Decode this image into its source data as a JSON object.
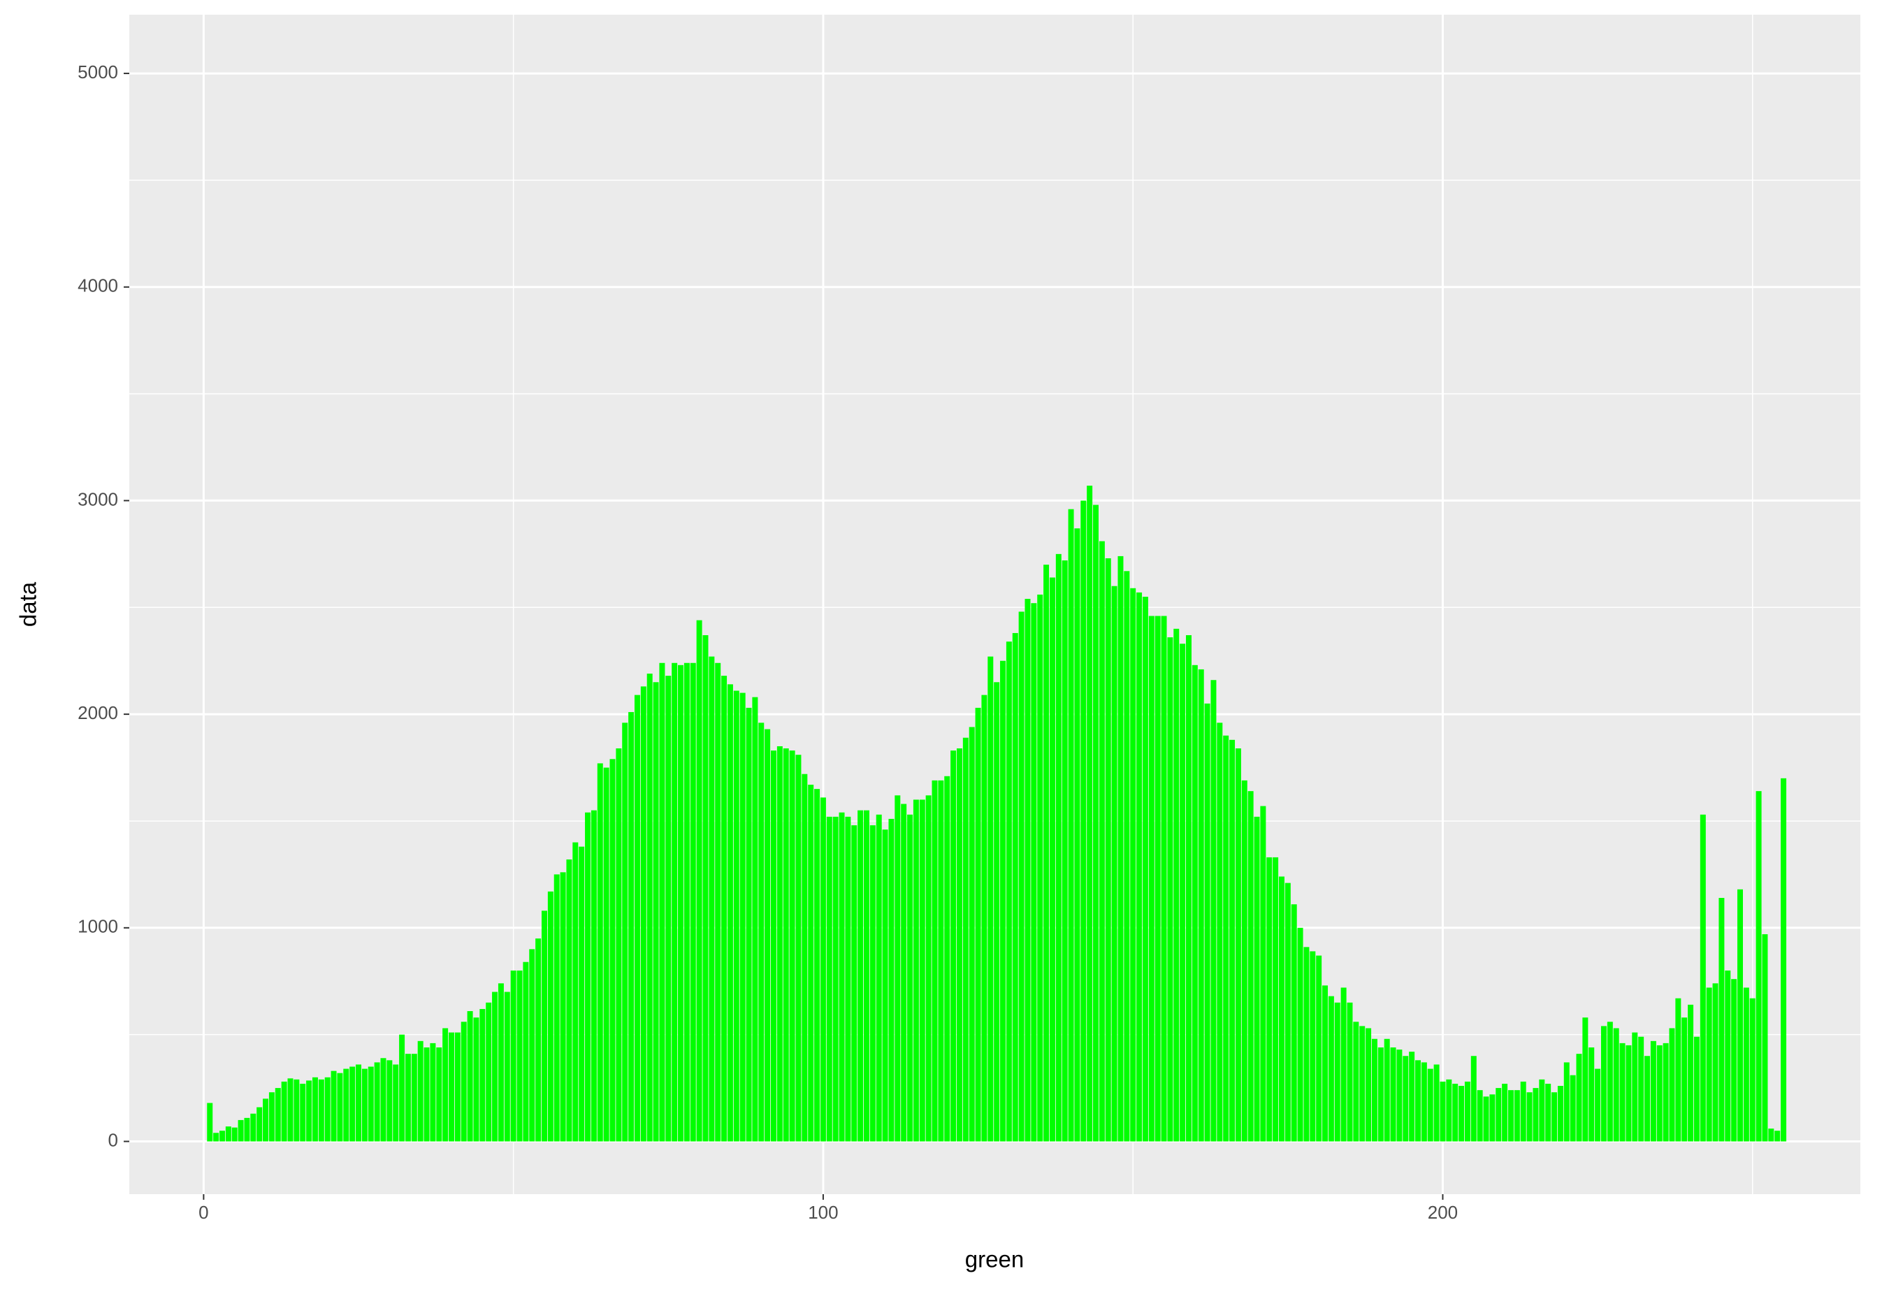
{
  "chart_data": {
    "type": "bar",
    "x_label": "green",
    "y_label": "data",
    "color": "#00ff00",
    "grid": true,
    "xlim": [
      -12,
      267.4
    ],
    "ylim": [
      -247,
      5275
    ],
    "xticks": [
      0,
      100,
      200
    ],
    "x_minor_ticks": [
      50,
      150,
      250
    ],
    "yticks": [
      0,
      1000,
      2000,
      3000,
      4000,
      5000
    ],
    "y_minor_ticks": [
      500,
      1500,
      2500,
      3500,
      4500
    ],
    "x": [
      1,
      2,
      3,
      4,
      5,
      6,
      7,
      8,
      9,
      10,
      11,
      12,
      13,
      14,
      15,
      16,
      17,
      18,
      19,
      20,
      21,
      22,
      23,
      24,
      25,
      26,
      27,
      28,
      29,
      30,
      31,
      32,
      33,
      34,
      35,
      36,
      37,
      38,
      39,
      40,
      41,
      42,
      43,
      44,
      45,
      46,
      47,
      48,
      49,
      50,
      51,
      52,
      53,
      54,
      55,
      56,
      57,
      58,
      59,
      60,
      61,
      62,
      63,
      64,
      65,
      66,
      67,
      68,
      69,
      70,
      71,
      72,
      73,
      74,
      75,
      76,
      77,
      78,
      79,
      80,
      81,
      82,
      83,
      84,
      85,
      86,
      87,
      88,
      89,
      90,
      91,
      92,
      93,
      94,
      95,
      96,
      97,
      98,
      99,
      100,
      101,
      102,
      103,
      104,
      105,
      106,
      107,
      108,
      109,
      110,
      111,
      112,
      113,
      114,
      115,
      116,
      117,
      118,
      119,
      120,
      121,
      122,
      123,
      124,
      125,
      126,
      127,
      128,
      129,
      130,
      131,
      132,
      133,
      134,
      135,
      136,
      137,
      138,
      139,
      140,
      141,
      142,
      143,
      144,
      145,
      146,
      147,
      148,
      149,
      150,
      151,
      152,
      153,
      154,
      155,
      156,
      157,
      158,
      159,
      160,
      161,
      162,
      163,
      164,
      165,
      166,
      167,
      168,
      169,
      170,
      171,
      172,
      173,
      174,
      175,
      176,
      177,
      178,
      179,
      180,
      181,
      182,
      183,
      184,
      185,
      186,
      187,
      188,
      189,
      190,
      191,
      192,
      193,
      194,
      195,
      196,
      197,
      198,
      199,
      200,
      201,
      202,
      203,
      204,
      205,
      206,
      207,
      208,
      209,
      210,
      211,
      212,
      213,
      214,
      215,
      216,
      217,
      218,
      219,
      220,
      221,
      222,
      223,
      224,
      225,
      226,
      227,
      228,
      229,
      230,
      231,
      232,
      233,
      234,
      235,
      236,
      237,
      238,
      239,
      240,
      241,
      242,
      243,
      244,
      245,
      246,
      247,
      248,
      249,
      250,
      251,
      252,
      253,
      254,
      255
    ],
    "values": [
      180,
      40,
      50,
      70,
      65,
      100,
      110,
      130,
      160,
      200,
      230,
      250,
      280,
      295,
      290,
      270,
      285,
      300,
      290,
      300,
      330,
      320,
      340,
      350,
      360,
      340,
      350,
      370,
      390,
      380,
      360,
      500,
      410,
      410,
      470,
      440,
      460,
      440,
      530,
      510,
      510,
      560,
      610,
      580,
      620,
      650,
      700,
      740,
      700,
      800,
      800,
      840,
      900,
      950,
      1080,
      1170,
      1250,
      1260,
      1320,
      1400,
      1380,
      1540,
      1550,
      1770,
      1750,
      1790,
      1840,
      1960,
      2010,
      2090,
      2130,
      2190,
      2150,
      2240,
      2180,
      2240,
      2230,
      2240,
      2240,
      2440,
      2370,
      2270,
      2240,
      2180,
      2140,
      2110,
      2100,
      2030,
      2080,
      1960,
      1930,
      1830,
      1850,
      1840,
      1830,
      1810,
      1720,
      1670,
      1650,
      1610,
      1520,
      1520,
      1540,
      1520,
      1480,
      1550,
      1550,
      1480,
      1530,
      1460,
      1510,
      1620,
      1580,
      1530,
      1600,
      1600,
      1620,
      1690,
      1690,
      1710,
      1830,
      1840,
      1890,
      1940,
      2030,
      2090,
      2270,
      2150,
      2250,
      2340,
      2380,
      2480,
      2540,
      2520,
      2560,
      2700,
      2640,
      2750,
      2720,
      2960,
      2870,
      3000,
      3070,
      2980,
      2810,
      2730,
      2600,
      2740,
      2670,
      2590,
      2570,
      2550,
      2460,
      2460,
      2460,
      2360,
      2400,
      2330,
      2370,
      2230,
      2210,
      2050,
      2160,
      1960,
      1900,
      1880,
      1840,
      1690,
      1640,
      1520,
      1570,
      1330,
      1330,
      1240,
      1210,
      1110,
      1000,
      910,
      890,
      870,
      730,
      680,
      650,
      720,
      650,
      560,
      540,
      530,
      480,
      440,
      480,
      440,
      430,
      400,
      420,
      380,
      370,
      340,
      360,
      280,
      290,
      270,
      260,
      280,
      400,
      240,
      210,
      220,
      250,
      270,
      240,
      240,
      280,
      230,
      250,
      290,
      270,
      230,
      260,
      370,
      310,
      410,
      580,
      440,
      340,
      540,
      560,
      530,
      460,
      450,
      510,
      490,
      400,
      470,
      450,
      460,
      530,
      670,
      580,
      640,
      490,
      1530,
      720,
      740,
      1140,
      800,
      760,
      1180,
      720,
      670,
      1640,
      970,
      60,
      50,
      1700
    ]
  }
}
